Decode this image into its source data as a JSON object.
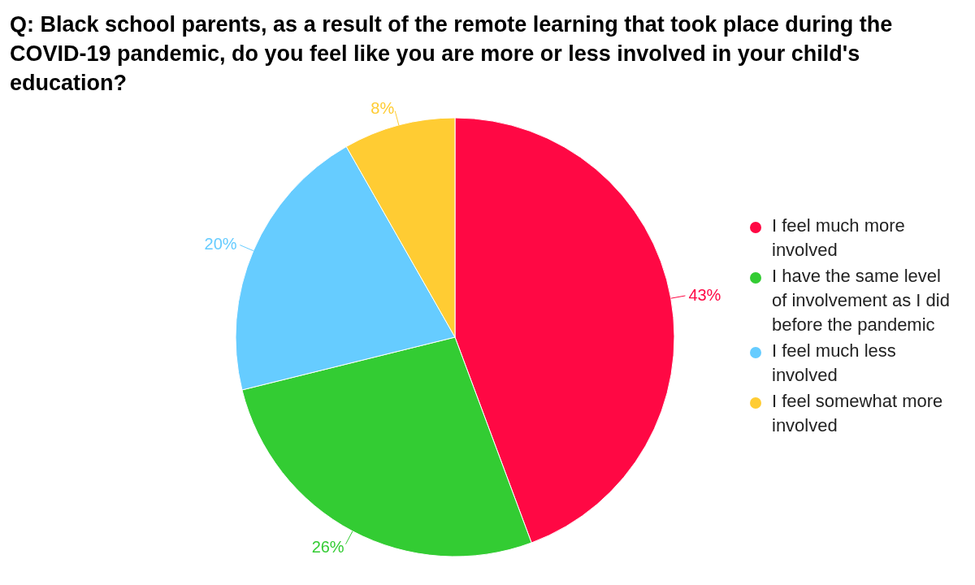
{
  "chart_data": {
    "type": "pie",
    "title": "Q: Black school parents, as a result of the remote learning that took place during the COVID-19 pandemic, do you feel like you are more or less involved in your child's education?",
    "categories": [
      "I feel much more involved",
      "I have the same level of involvement as I did before the pandemic",
      "I feel much less involved",
      "I feel somewhat more involved"
    ],
    "values": [
      43,
      26,
      20,
      8
    ],
    "colors": [
      "#ff0844",
      "#33cc33",
      "#66ccff",
      "#ffcc33"
    ],
    "value_labels": [
      "43%",
      "26%",
      "20%",
      "8%"
    ],
    "legend": "right"
  }
}
